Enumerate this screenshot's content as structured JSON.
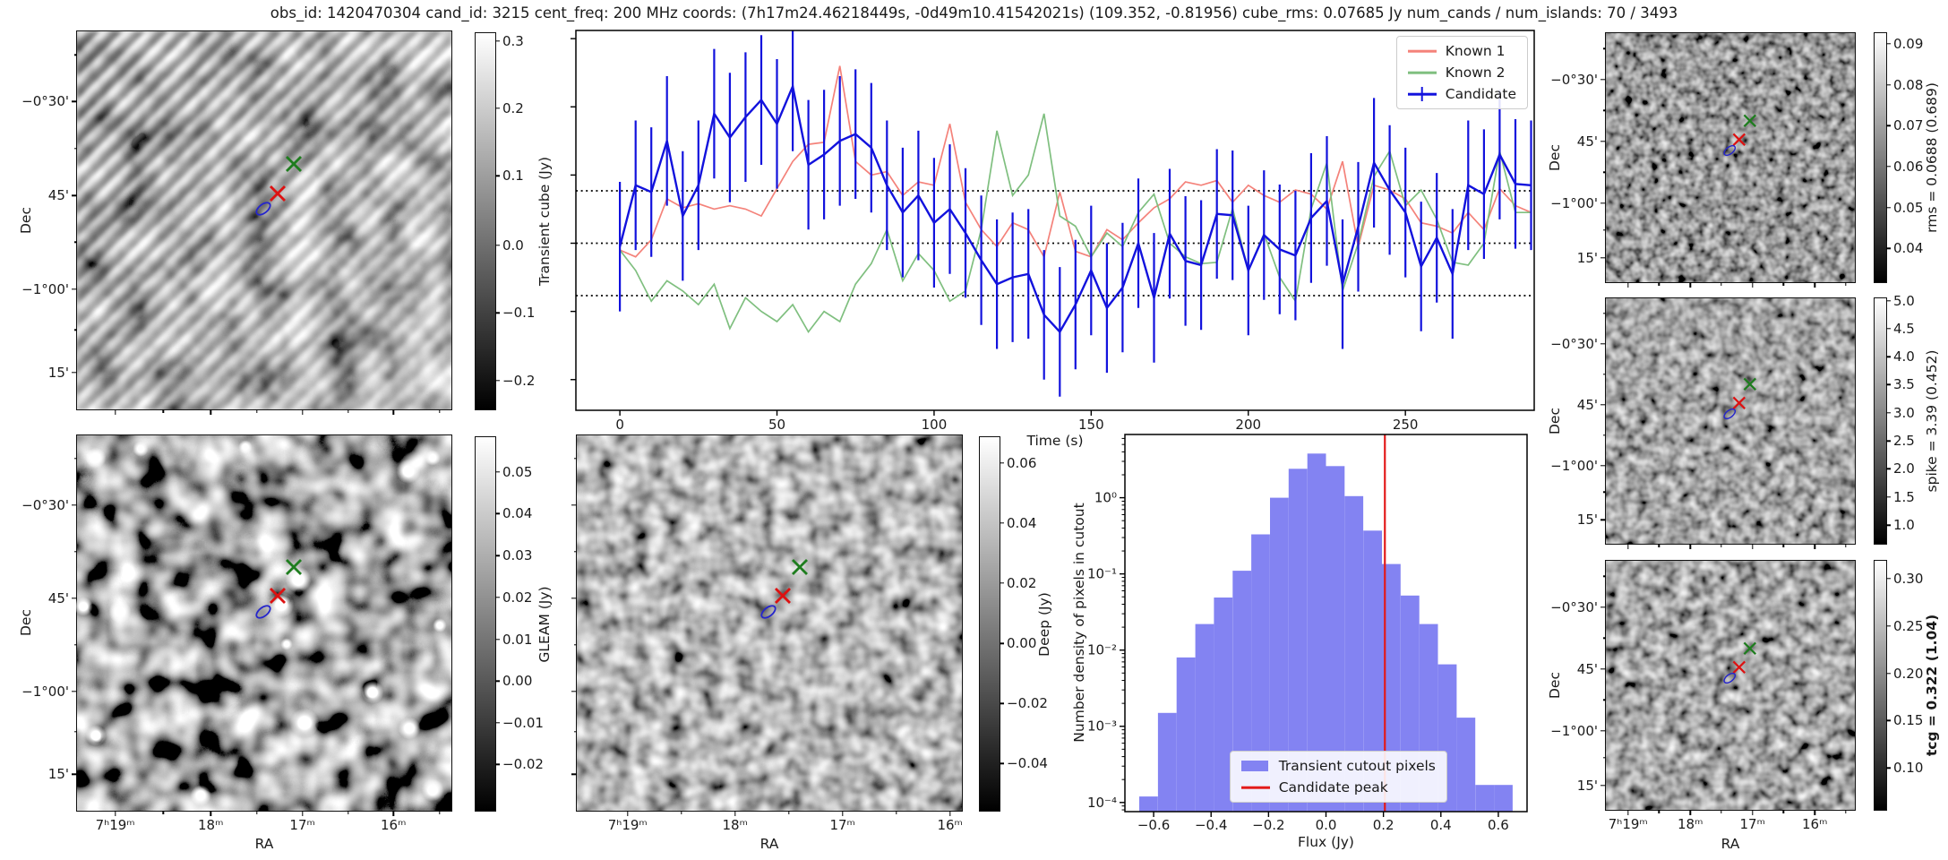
{
  "title": "obs_id: 1420470304 cand_id: 3215 cent_freq: 200 MHz coords: (7h17m24.46218449s, -0d49m10.41542021s) (109.352, -0.81956) cube_rms: 0.07685 Jy num_cands / num_islands: 70 / 3493",
  "colors": {
    "known1": "#f4827a",
    "known2": "#7fbf7f",
    "candidate": "#1212dd",
    "hist_bar": "#8383f2",
    "peak_line": "#e31a1a"
  },
  "axis_labels": {
    "ra": "RA",
    "dec": "Dec"
  },
  "dec_ticks": [
    {
      "label": "",
      "pos": 0.062,
      "minor": true
    },
    {
      "label": "−0°30'",
      "pos": 0.186
    },
    {
      "label": "",
      "pos": 0.31,
      "minor": true
    },
    {
      "label": "45'",
      "pos": 0.434
    },
    {
      "label": "",
      "pos": 0.558,
      "minor": true
    },
    {
      "label": "−1°00'",
      "pos": 0.682
    },
    {
      "label": "",
      "pos": 0.79,
      "minor": true
    },
    {
      "label": "15'",
      "pos": 0.903
    }
  ],
  "panels": {
    "transient_cube": {
      "colorbar_label": "Transient cube (Jy)",
      "colorbar_ticks": [
        {
          "label": "0.3",
          "pos": 0.021
        },
        {
          "label": "0.2",
          "pos": 0.199
        },
        {
          "label": "0.1",
          "pos": 0.379
        },
        {
          "label": "0.0",
          "pos": 0.564
        },
        {
          "label": "−0.1",
          "pos": 0.744
        },
        {
          "label": "−0.2",
          "pos": 0.924
        }
      ]
    },
    "gleam": {
      "colorbar_label": "GLEAM (Jy)",
      "colorbar_ticks": [
        {
          "label": "0.05",
          "pos": 0.093
        },
        {
          "label": "0.04",
          "pos": 0.205
        },
        {
          "label": "0.03",
          "pos": 0.317
        },
        {
          "label": "0.02",
          "pos": 0.429
        },
        {
          "label": "0.01",
          "pos": 0.541
        },
        {
          "label": "0.00",
          "pos": 0.653
        },
        {
          "label": "−0.01",
          "pos": 0.765
        },
        {
          "label": "−0.02",
          "pos": 0.876
        }
      ],
      "ra_ticks": [
        {
          "label": "7ʰ19ᵐ",
          "pos": 0.102
        },
        {
          "label": "",
          "pos": 0.23,
          "minor": true
        },
        {
          "label": "18ᵐ",
          "pos": 0.357
        },
        {
          "label": "",
          "pos": 0.48,
          "minor": true
        },
        {
          "label": "17ᵐ",
          "pos": 0.602
        },
        {
          "label": "",
          "pos": 0.724,
          "minor": true
        },
        {
          "label": "16ᵐ",
          "pos": 0.845
        },
        {
          "label": "",
          "pos": 0.968,
          "minor": true
        }
      ],
      "sources": [
        [
          0.05,
          0.06,
          24
        ],
        [
          0.17,
          0.035,
          18
        ],
        [
          0.45,
          0.03,
          16
        ],
        [
          0.885,
          0.095,
          28
        ],
        [
          0.95,
          0.06,
          18
        ],
        [
          0.016,
          0.455,
          22
        ],
        [
          0.115,
          0.47,
          26
        ],
        [
          0.97,
          0.505,
          16
        ],
        [
          0.79,
          0.685,
          26
        ],
        [
          0.608,
          0.765,
          34
        ],
        [
          0.888,
          0.78,
          26
        ],
        [
          0.05,
          0.8,
          24
        ],
        [
          0.33,
          0.96,
          24
        ],
        [
          0.95,
          0.945,
          26
        ],
        [
          0.59,
          0.385,
          30
        ],
        [
          0.545,
          0.45,
          30
        ],
        [
          0.56,
          0.555,
          14
        ]
      ]
    },
    "deep": {
      "colorbar_label": "Deep (Jy)",
      "colorbar_ticks": [
        {
          "label": "0.06",
          "pos": 0.069
        },
        {
          "label": "0.04",
          "pos": 0.23
        },
        {
          "label": "0.02",
          "pos": 0.391
        },
        {
          "label": "0.00",
          "pos": 0.552
        },
        {
          "label": "−0.02",
          "pos": 0.713
        },
        {
          "label": "−0.04",
          "pos": 0.874
        }
      ],
      "ra_ticks": [
        {
          "label": "7ʰ19ᵐ",
          "pos": 0.132
        },
        {
          "label": "",
          "pos": 0.272,
          "minor": true
        },
        {
          "label": "18ᵐ",
          "pos": 0.411
        },
        {
          "label": "",
          "pos": 0.551,
          "minor": true
        },
        {
          "label": "17ᵐ",
          "pos": 0.69
        },
        {
          "label": "",
          "pos": 0.83,
          "minor": true
        },
        {
          "label": "16ᵐ",
          "pos": 0.969
        }
      ]
    },
    "rms": {
      "colorbar_label": "rms = 0.0688 (0.689)",
      "colorbar_ticks": [
        {
          "label": "0.09",
          "pos": 0.043
        },
        {
          "label": "0.08",
          "pos": 0.207
        },
        {
          "label": "0.07",
          "pos": 0.371
        },
        {
          "label": "0.06",
          "pos": 0.536
        },
        {
          "label": "0.05",
          "pos": 0.7
        },
        {
          "label": "0.04",
          "pos": 0.864
        }
      ]
    },
    "spike": {
      "colorbar_label": "spike = 3.39 (0.452)",
      "colorbar_ticks": [
        {
          "label": "5.0",
          "pos": 0.01
        },
        {
          "label": "4.5",
          "pos": 0.124
        },
        {
          "label": "4.0",
          "pos": 0.238
        },
        {
          "label": "3.5",
          "pos": 0.352
        },
        {
          "label": "3.0",
          "pos": 0.467
        },
        {
          "label": "2.5",
          "pos": 0.581
        },
        {
          "label": "2.0",
          "pos": 0.695
        },
        {
          "label": "1.5",
          "pos": 0.81
        },
        {
          "label": "1.0",
          "pos": 0.924
        }
      ]
    },
    "tcg": {
      "colorbar_label": "tcg = 0.322 (1.04)",
      "colorbar_ticks": [
        {
          "label": "0.30",
          "pos": 0.071
        },
        {
          "label": "0.25",
          "pos": 0.261
        },
        {
          "label": "0.20",
          "pos": 0.452
        },
        {
          "label": "0.15",
          "pos": 0.642
        },
        {
          "label": "0.10",
          "pos": 0.832
        }
      ]
    },
    "right_ra_ticks": [
      {
        "label": "7ʰ19ᵐ",
        "pos": 0.089
      },
      {
        "label": "",
        "pos": 0.214,
        "minor": true
      },
      {
        "label": "18ᵐ",
        "pos": 0.339
      },
      {
        "label": "",
        "pos": 0.464,
        "minor": true
      },
      {
        "label": "17ᵐ",
        "pos": 0.589
      },
      {
        "label": "",
        "pos": 0.714,
        "minor": true
      },
      {
        "label": "16ᵐ",
        "pos": 0.839
      },
      {
        "label": "",
        "pos": 0.964,
        "minor": true
      }
    ]
  },
  "markers": {
    "green_x": {
      "x": 0.578,
      "y": 0.35,
      "color": "#1e7d1e"
    },
    "red_x": {
      "x": 0.536,
      "y": 0.428,
      "color": "#dd1111"
    },
    "blue_ellipse": {
      "x": 0.497,
      "y": 0.47,
      "color": "#2525cc"
    }
  },
  "chart_data": [
    {
      "type": "line",
      "title": "",
      "xlabel": "Time (s)",
      "ylabel": "",
      "xlim": [
        -14,
        291
      ],
      "ylim": [
        -0.245,
        0.312
      ],
      "grid": false,
      "legend_position": "top-right",
      "hlines": [
        0.0768,
        0.0,
        -0.0768
      ],
      "xticks": [
        {
          "v": 0,
          "label": "0"
        },
        {
          "v": 50,
          "label": "50"
        },
        {
          "v": 100,
          "label": "100"
        },
        {
          "v": 150,
          "label": "150"
        },
        {
          "v": 200,
          "label": "200"
        },
        {
          "v": 250,
          "label": "250"
        }
      ],
      "yticks": [
        0.3,
        0.2,
        0.1,
        0.0,
        -0.1,
        -0.2
      ],
      "x": [
        0,
        5,
        10,
        15,
        20,
        25,
        30,
        35,
        40,
        45,
        50,
        55,
        60,
        65,
        70,
        75,
        80,
        85,
        90,
        95,
        100,
        105,
        110,
        115,
        120,
        125,
        130,
        135,
        140,
        145,
        150,
        155,
        160,
        165,
        170,
        175,
        180,
        185,
        190,
        195,
        200,
        205,
        210,
        215,
        220,
        225,
        230,
        235,
        240,
        245,
        250,
        255,
        260,
        265,
        270,
        275,
        280,
        285,
        290
      ],
      "series": [
        {
          "name": "Known 1",
          "color": "#f4827a",
          "values": [
            -0.01,
            -0.02,
            0.005,
            0.065,
            0.052,
            0.058,
            0.05,
            0.055,
            0.05,
            0.04,
            0.08,
            0.12,
            0.145,
            0.148,
            0.26,
            0.12,
            0.1,
            0.105,
            0.07,
            0.09,
            0.085,
            0.175,
            0.06,
            0.02,
            -0.005,
            0.03,
            0.02,
            -0.02,
            0.075,
            -0.012,
            -0.02,
            0.02,
            0.005,
            0.03,
            0.052,
            0.065,
            0.09,
            0.085,
            0.092,
            0.06,
            0.085,
            0.07,
            0.06,
            0.078,
            0.072,
            0.05,
            0.12,
            -0.005,
            0.085,
            0.078,
            0.065,
            0.03,
            0.025,
            0.015,
            0.045,
            0.02,
            0.08,
            0.055,
            0.045
          ]
        },
        {
          "name": "Known 2",
          "color": "#7fbf7f",
          "values": [
            -0.01,
            -0.04,
            -0.085,
            -0.055,
            -0.07,
            -0.09,
            -0.06,
            -0.125,
            -0.08,
            -0.1,
            -0.115,
            -0.09,
            -0.13,
            -0.1,
            -0.115,
            -0.06,
            -0.03,
            0.02,
            -0.055,
            -0.015,
            -0.04,
            -0.085,
            -0.07,
            0.02,
            0.165,
            0.07,
            0.1,
            0.19,
            0.04,
            0.025,
            -0.02,
            0.015,
            -0.005,
            0.045,
            0.072,
            0.0,
            -0.02,
            -0.03,
            -0.028,
            0.051,
            -0.04,
            0.014,
            -0.05,
            -0.085,
            0.05,
            0.118,
            -0.07,
            0.0,
            0.098,
            0.135,
            0.055,
            0.078,
            0.035,
            -0.028,
            -0.032,
            0.0,
            0.135,
            0.045,
            0.045
          ]
        },
        {
          "name": "Candidate",
          "color": "#1212dd",
          "yerr": 0.095,
          "values": [
            -0.005,
            0.085,
            0.075,
            0.15,
            0.04,
            0.085,
            0.19,
            0.155,
            0.185,
            0.21,
            0.175,
            0.23,
            0.115,
            0.13,
            0.15,
            0.16,
            0.14,
            0.085,
            0.045,
            0.07,
            0.03,
            0.05,
            0.015,
            -0.025,
            -0.06,
            -0.05,
            -0.045,
            -0.105,
            -0.13,
            -0.09,
            -0.04,
            -0.095,
            -0.065,
            0.0,
            -0.08,
            0.014,
            -0.026,
            -0.032,
            0.043,
            0.041,
            -0.04,
            0.012,
            -0.009,
            -0.018,
            0.037,
            0.062,
            -0.06,
            0.024,
            0.118,
            0.078,
            0.045,
            -0.034,
            0.008,
            -0.045,
            0.085,
            0.072,
            0.13,
            0.087,
            0.085
          ]
        }
      ]
    },
    {
      "type": "bar",
      "title": "",
      "xlabel": "Flux (Jy)",
      "ylabel": "Number density of pixels in cutout",
      "xlim": [
        -0.7,
        0.7
      ],
      "ylim_log": [
        -4.12,
        0.83
      ],
      "yscale": "log",
      "bar_color": "#8383f2",
      "bar_label": "Transient cutout pixels",
      "vline_label": "Candidate peak",
      "vline": {
        "x": 0.205,
        "color": "#e31a1a"
      },
      "bin_edges": [
        -0.65,
        -0.585,
        -0.52,
        -0.455,
        -0.39,
        -0.325,
        -0.26,
        -0.195,
        -0.13,
        -0.065,
        0.0,
        0.065,
        0.13,
        0.195,
        0.26,
        0.325,
        0.39,
        0.455,
        0.52,
        0.585,
        0.65
      ],
      "values": [
        0.00012,
        0.0015,
        0.008,
        0.022,
        0.049,
        0.11,
        0.33,
        1.0,
        2.4,
        3.8,
        2.6,
        1.05,
        0.37,
        0.135,
        0.052,
        0.022,
        0.0065,
        0.0013,
        0.00017,
        0.00017
      ],
      "xticks": [
        {
          "v": -0.6,
          "label": "−0.6"
        },
        {
          "v": -0.4,
          "label": "−0.4"
        },
        {
          "v": -0.2,
          "label": "−0.2"
        },
        {
          "v": 0.0,
          "label": "0.0"
        },
        {
          "v": 0.2,
          "label": "0.2"
        },
        {
          "v": 0.4,
          "label": "0.4"
        },
        {
          "v": 0.6,
          "label": "0.6"
        }
      ],
      "ytick_exps": [
        0,
        -1,
        -2,
        -3,
        -4
      ],
      "ytick_labels": [
        "10⁰",
        "10⁻¹",
        "10⁻²",
        "10⁻³",
        "10⁻⁴"
      ]
    }
  ]
}
